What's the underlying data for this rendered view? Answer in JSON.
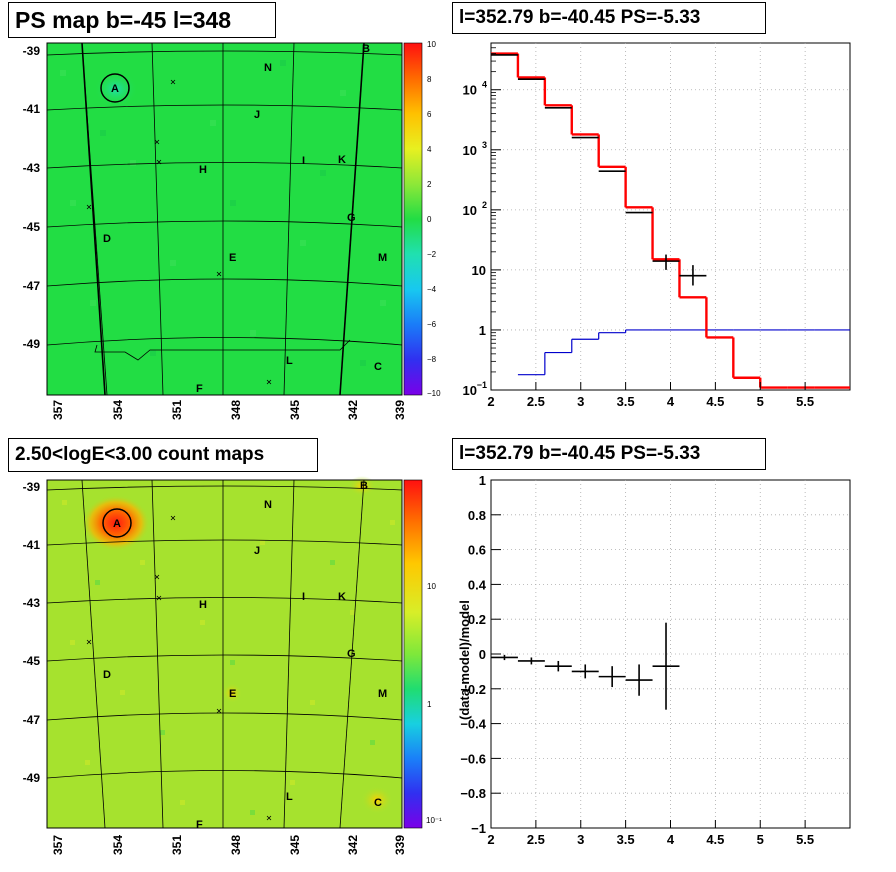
{
  "titles": {
    "map_top": "PS map b=-45 l=348",
    "spectrum_top": "l=352.79 b=-40.45 PS=-5.33",
    "map_bottom": "2.50<logE<3.00 count maps",
    "residual_bottom": "l=352.79 b=-40.45 PS=-5.33"
  },
  "colors": {
    "model_line": "#ff0000",
    "background_line": "#0000cc",
    "data_points": "#000000",
    "map_top_fill": "#22dd44",
    "map_bottom_fill": "#a6e22e"
  },
  "maps": {
    "lon_ticks": [
      "357",
      "354",
      "351",
      "348",
      "345",
      "342",
      "339"
    ],
    "lat_ticks": [
      "-39",
      "-41",
      "-43",
      "-45",
      "-47",
      "-49"
    ],
    "sources": [
      "A",
      "B",
      "C",
      "D",
      "E",
      "F",
      "G",
      "H",
      "I",
      "J",
      "K",
      "L",
      "M",
      "N"
    ],
    "top_colorbar_ticks": [
      "10",
      "8",
      "6",
      "4",
      "2",
      "0",
      "−2",
      "−4",
      "−6",
      "−8",
      "−10"
    ],
    "bottom_colorbar_ticks": [
      "10",
      "1",
      "10⁻¹"
    ]
  },
  "chart_data": [
    {
      "type": "line",
      "panel": "spectrum",
      "y_scale": "log",
      "xlim": [
        2,
        6
      ],
      "ylim": [
        0.1,
        60000
      ],
      "x_ticks": [
        "2",
        "2.5",
        "3",
        "3.5",
        "4",
        "4.5",
        "5",
        "5.5"
      ],
      "y_ticks": [
        {
          "value": 10000,
          "base": "10",
          "exp": "4"
        },
        {
          "value": 1000,
          "base": "10",
          "exp": "3"
        },
        {
          "value": 100,
          "base": "10",
          "exp": "2"
        },
        {
          "value": 10,
          "base": "10",
          "exp": ""
        },
        {
          "value": 1,
          "base": "1",
          "exp": ""
        },
        {
          "value": 0.1,
          "base": "10",
          "exp": "−1"
        }
      ],
      "bin_edges": [
        2.0,
        2.3,
        2.6,
        2.9,
        3.2,
        3.5,
        3.8,
        4.1,
        4.4,
        4.7,
        5.0,
        5.3,
        5.6,
        6.0
      ],
      "series": [
        {
          "role": "model",
          "values": [
            40000,
            16000,
            5500,
            1800,
            520,
            110,
            15,
            3.5,
            0.75,
            0.16,
            0.11,
            0.11,
            0.11
          ]
        },
        {
          "role": "background",
          "values": [
            0.05,
            0.18,
            0.42,
            0.7,
            0.9,
            1.0,
            1.0,
            1.0,
            1.0,
            1.0,
            1.0,
            1.0,
            1.0
          ]
        }
      ],
      "points": [
        {
          "x": 2.15,
          "y": 38000,
          "xerr": 0.15
        },
        {
          "x": 2.45,
          "y": 15000,
          "xerr": 0.15
        },
        {
          "x": 2.75,
          "y": 5000,
          "xerr": 0.15
        },
        {
          "x": 3.05,
          "y": 1600,
          "xerr": 0.15
        },
        {
          "x": 3.35,
          "y": 440,
          "xerr": 0.15
        },
        {
          "x": 3.65,
          "y": 90,
          "xerr": 0.15
        },
        {
          "x": 3.95,
          "y": 14,
          "xerr": 0.15,
          "ylo": 10,
          "yhi": 18
        },
        {
          "x": 4.25,
          "y": 8,
          "xerr": 0.15,
          "ylo": 5.5,
          "yhi": 12
        }
      ]
    },
    {
      "type": "scatter",
      "panel": "residual",
      "ylabel": "(data-model)/model",
      "xlim": [
        2,
        6
      ],
      "ylim": [
        -1,
        1
      ],
      "x_ticks": [
        "2",
        "2.5",
        "3",
        "3.5",
        "4",
        "4.5",
        "5",
        "5.5"
      ],
      "y_ticks": [
        "1",
        "0.8",
        "0.6",
        "0.4",
        "0.2",
        "0",
        "−0.2",
        "−0.4",
        "−0.6",
        "−0.8",
        "−1"
      ],
      "points": [
        {
          "x": 2.15,
          "y": -0.02,
          "xerr": 0.15,
          "yerr": 0.015
        },
        {
          "x": 2.45,
          "y": -0.04,
          "xerr": 0.15,
          "yerr": 0.02
        },
        {
          "x": 2.75,
          "y": -0.07,
          "xerr": 0.15,
          "yerr": 0.03
        },
        {
          "x": 3.05,
          "y": -0.1,
          "xerr": 0.15,
          "yerr": 0.04
        },
        {
          "x": 3.35,
          "y": -0.13,
          "xerr": 0.15,
          "yerr": 0.06
        },
        {
          "x": 3.65,
          "y": -0.15,
          "xerr": 0.15,
          "yerr": 0.09
        },
        {
          "x": 3.95,
          "y": -0.07,
          "xerr": 0.15,
          "yerr": 0.25
        }
      ]
    }
  ]
}
